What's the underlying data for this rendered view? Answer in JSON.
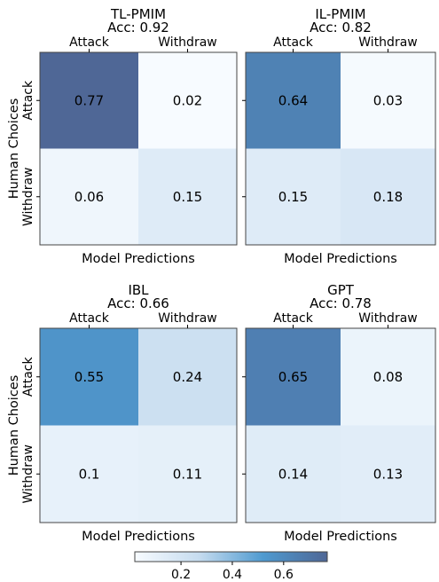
{
  "chart_data": [
    {
      "type": "heatmap",
      "title": "TL-PMIM",
      "subtitle": "Acc: 0.92",
      "xlabel": "Model Predictions",
      "ylabel": "Human Choices",
      "x_categories": [
        "Attack",
        "Withdraw"
      ],
      "y_categories": [
        "Attack",
        "Withdraw"
      ],
      "values": [
        [
          0.77,
          0.02
        ],
        [
          0.06,
          0.15
        ]
      ],
      "labels": [
        [
          "0.77",
          "0.02"
        ],
        [
          "0.06",
          "0.15"
        ]
      ]
    },
    {
      "type": "heatmap",
      "title": "IL-PMIM",
      "subtitle": "Acc: 0.82",
      "xlabel": "Model Predictions",
      "ylabel": "",
      "x_categories": [
        "Attack",
        "Withdraw"
      ],
      "y_categories": [
        "",
        ""
      ],
      "values": [
        [
          0.64,
          0.03
        ],
        [
          0.15,
          0.18
        ]
      ],
      "labels": [
        [
          "0.64",
          "0.03"
        ],
        [
          "0.15",
          "0.18"
        ]
      ]
    },
    {
      "type": "heatmap",
      "title": "IBL",
      "subtitle": "Acc: 0.66",
      "xlabel": "Model Predictions",
      "ylabel": "Human Choices",
      "x_categories": [
        "Attack",
        "Withdraw"
      ],
      "y_categories": [
        "Attack",
        "Withdraw"
      ],
      "values": [
        [
          0.55,
          0.24
        ],
        [
          0.1,
          0.11
        ]
      ],
      "labels": [
        [
          "0.55",
          "0.24"
        ],
        [
          "0.1",
          "0.11"
        ]
      ]
    },
    {
      "type": "heatmap",
      "title": "GPT",
      "subtitle": "Acc: 0.78",
      "xlabel": "Model Predictions",
      "ylabel": "",
      "x_categories": [
        "Attack",
        "Withdraw"
      ],
      "y_categories": [
        "",
        ""
      ],
      "values": [
        [
          0.65,
          0.08
        ],
        [
          0.14,
          0.13
        ]
      ],
      "labels": [
        [
          "0.65",
          "0.08"
        ],
        [
          "0.14",
          "0.13"
        ]
      ]
    }
  ],
  "colorbar": {
    "min": 0.02,
    "max": 0.77,
    "ticks": [
      0.2,
      0.4,
      0.6
    ],
    "tick_labels": [
      "0.2",
      "0.4",
      "0.6"
    ],
    "colors": [
      "#f7fbff",
      "#c6dcef",
      "#4f9ad0",
      "#4f6796"
    ]
  }
}
